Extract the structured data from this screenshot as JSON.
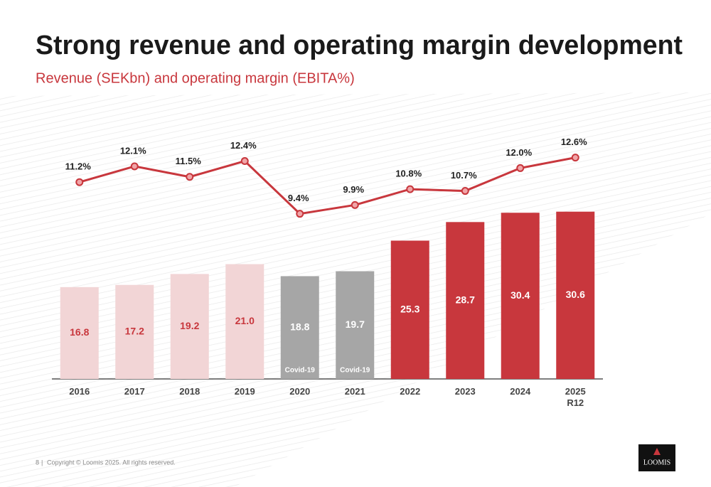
{
  "chart_data": {
    "type": "bar",
    "title": "Strong revenue and operating margin development",
    "subtitle": "Revenue (SEKbn) and operating margin (EBITA%)",
    "categories": [
      "2016",
      "2017",
      "2018",
      "2019",
      "2020",
      "2021",
      "2022",
      "2023",
      "2024",
      "2025 R12"
    ],
    "ylim": [
      0,
      45
    ],
    "y2lim": [
      0,
      14
    ],
    "series": [
      {
        "type": "bar",
        "values": [
          16.8,
          17.2,
          19.2,
          21.0,
          18.8,
          19.7,
          25.3,
          28.7,
          30.4,
          30.6
        ],
        "value_labels": [
          "16.8",
          "17.2",
          "19.2",
          "21.0",
          "18.8",
          "19.7",
          "25.3",
          "28.7",
          "30.4",
          "30.6"
        ],
        "colors": [
          "#f2d5d6",
          "#f2d5d6",
          "#f2d5d6",
          "#f2d5d6",
          "#a6a6a6",
          "#a6a6a6",
          "#c8373d",
          "#c8373d",
          "#c8373d",
          "#c8373d"
        ],
        "label_colors": [
          "#c8373d",
          "#c8373d",
          "#c8373d",
          "#c8373d",
          "#ffffff",
          "#ffffff",
          "#ffffff",
          "#ffffff",
          "#ffffff",
          "#ffffff"
        ],
        "annotations": [
          null,
          null,
          null,
          null,
          "Covid-19",
          "Covid-19",
          null,
          null,
          null,
          null
        ]
      },
      {
        "type": "line",
        "axis": "y2",
        "color": "#c8373d",
        "values": [
          11.2,
          12.1,
          11.5,
          12.4,
          9.4,
          9.9,
          10.8,
          10.7,
          12.0,
          12.6
        ],
        "value_labels": [
          "11.2%",
          "12.1%",
          "11.5%",
          "12.4%",
          "9.4%",
          "9.9%",
          "10.8%",
          "10.7%",
          "12.0%",
          "12.6%"
        ]
      }
    ]
  },
  "footer": {
    "page": "8",
    "text": "Copyright © Loomis 2025. All rights reserved.",
    "logo": "LOOMIS"
  }
}
